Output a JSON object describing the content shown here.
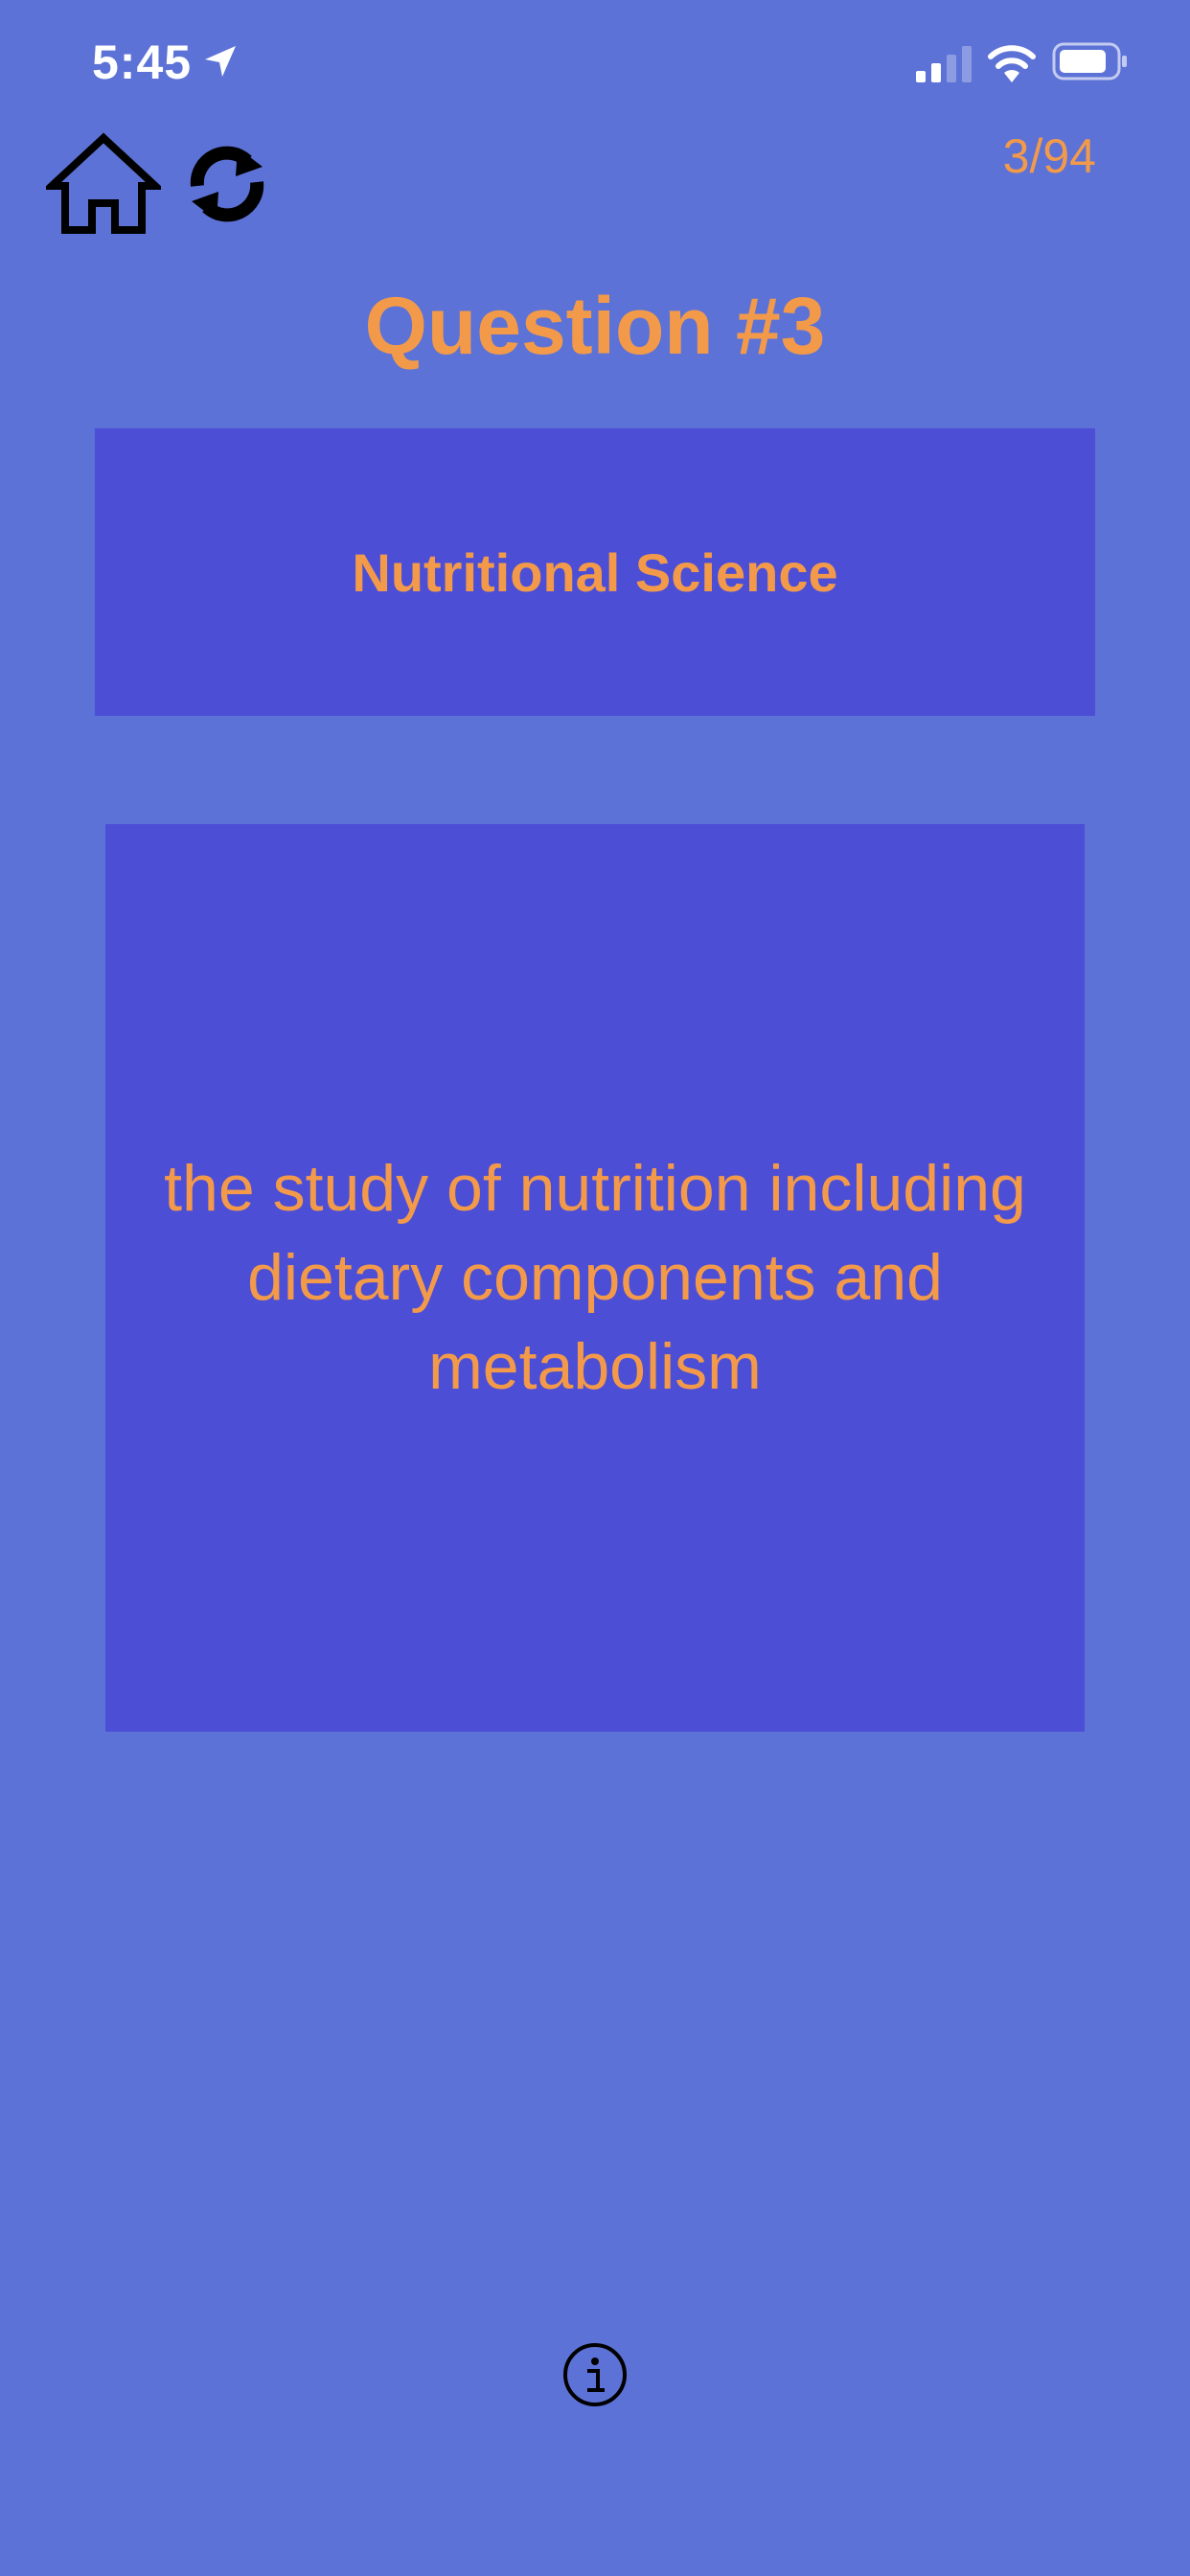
{
  "status_bar": {
    "time": "5:45",
    "icons": [
      "location-arrow-icon",
      "cellular-signal-icon",
      "wifi-icon",
      "battery-icon"
    ]
  },
  "toolbar": {
    "home_icon": "home-icon",
    "refresh_icon": "refresh-icon",
    "progress": "3/94"
  },
  "question": {
    "title": "Question #3"
  },
  "category_card": {
    "label": "Nutritional Science"
  },
  "definition_card": {
    "text": "the study of nutrition including dietary components and metabolism"
  },
  "footer": {
    "info_icon": "info-icon"
  },
  "colors": {
    "background": "#5c72d6",
    "card": "#4c4ed6",
    "accent_text": "#f39a4a",
    "icon": "#000000",
    "status_text": "#ffffff"
  }
}
